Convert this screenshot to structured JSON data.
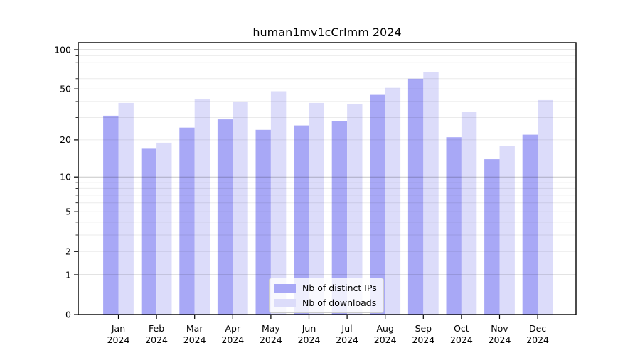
{
  "chart_data": {
    "type": "bar",
    "title": "human1mv1cCrlmm 2024",
    "categories": [
      "Jan 2024",
      "Feb 2024",
      "Mar 2024",
      "Apr 2024",
      "May 2024",
      "Jun 2024",
      "Jul 2024",
      "Aug 2024",
      "Sep 2024",
      "Oct 2024",
      "Nov 2024",
      "Dec 2024"
    ],
    "x_tick_months": [
      "Jan",
      "Feb",
      "Mar",
      "Apr",
      "May",
      "Jun",
      "Jul",
      "Aug",
      "Sep",
      "Oct",
      "Nov",
      "Dec"
    ],
    "x_tick_years": [
      "2024",
      "2024",
      "2024",
      "2024",
      "2024",
      "2024",
      "2024",
      "2024",
      "2024",
      "2024",
      "2024",
      "2024"
    ],
    "series": [
      {
        "name": "Nb of distinct IPs",
        "color": "#a8a8f6",
        "values": [
          31,
          17,
          25,
          29,
          24,
          26,
          28,
          45,
          60,
          21,
          14,
          22
        ]
      },
      {
        "name": "Nb of downloads",
        "color": "#dcdcfa",
        "values": [
          39,
          19,
          42,
          40,
          48,
          39,
          38,
          51,
          67,
          33,
          18,
          41
        ]
      }
    ],
    "xlabel": "",
    "ylabel": "",
    "yscale": "log1p",
    "y_tick_values": [
      0,
      1,
      2,
      5,
      10,
      20,
      50,
      100
    ],
    "y_tick_labels": [
      "0",
      "1",
      "2",
      "5",
      "10",
      "20",
      "50",
      "100"
    ],
    "y_major_gridlines": [
      1,
      10,
      100
    ],
    "y_minor_gridlines": [
      2,
      3,
      4,
      5,
      6,
      7,
      8,
      9,
      20,
      30,
      40,
      50,
      60,
      70,
      80,
      90
    ],
    "ylim": [
      0,
      113
    ],
    "grid": true,
    "legend_position": "lower-center"
  },
  "legend": {
    "items": [
      {
        "label": "Nb of distinct IPs"
      },
      {
        "label": "Nb of downloads"
      }
    ]
  },
  "colors": {
    "distinct_ips": "#a8a8f6",
    "downloads": "#dcdcfa",
    "spine": "#000000",
    "major_grid": "rgba(0,0,0,0.22)",
    "minor_grid": "rgba(0,0,0,0.08)",
    "text": "#000000",
    "legend_border": "#cccccc"
  }
}
